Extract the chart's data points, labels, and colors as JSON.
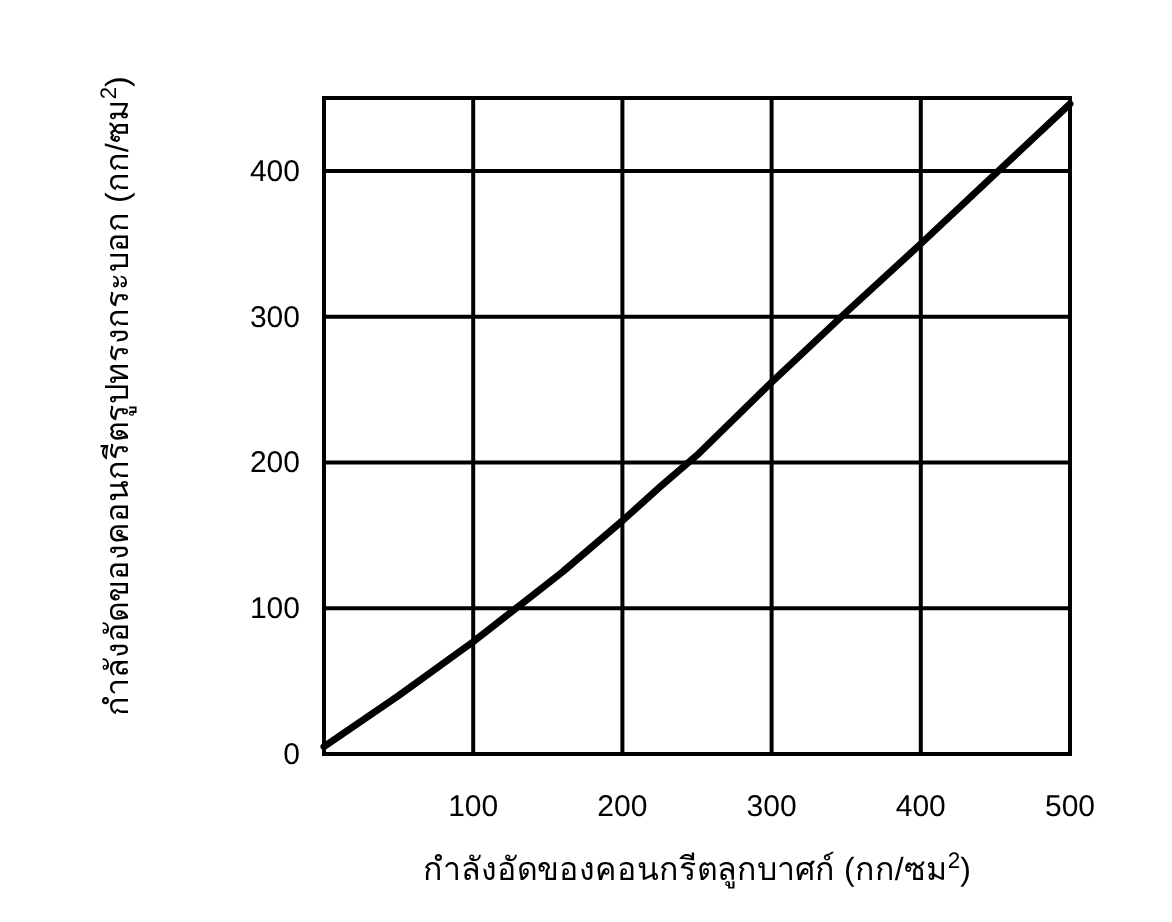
{
  "chart_data": {
    "type": "line",
    "xlabel": "กำลังอัดของคอนกรีตลูกบาศก์ (กก/ซม$^{2}$)",
    "ylabel": "กำลังอัดของคอนกรีตรูปทรงกระบอก (กก/ซม$^{2}$)",
    "x": [
      0,
      50,
      100,
      135,
      160,
      200,
      225,
      250,
      300,
      350,
      400,
      450,
      500
    ],
    "series": [
      {
        "color": "#000000",
        "values": [
          5,
          40,
          77,
          105,
          125,
          160,
          183,
          205,
          255,
          303,
          350,
          398,
          446
        ]
      }
    ],
    "xlim": [
      0,
      500
    ],
    "ylim": [
      0,
      450
    ],
    "xticks": [
      100,
      200,
      300,
      400,
      500
    ],
    "yticks": [
      0,
      100,
      200,
      300,
      400
    ],
    "grid": true,
    "marker": "none",
    "line_style": "solid"
  }
}
